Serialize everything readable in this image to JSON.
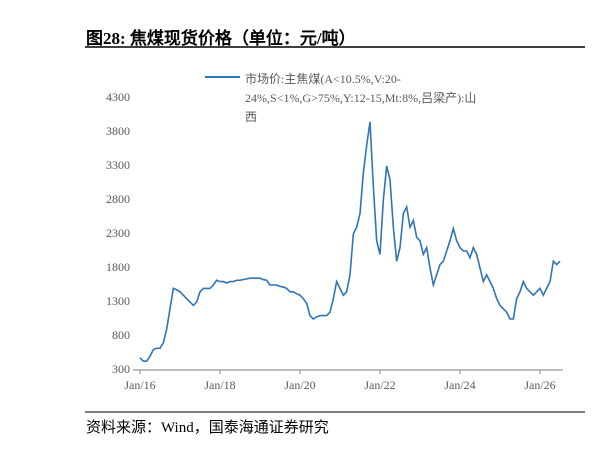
{
  "chart_data": {
    "type": "line",
    "title": "图28:  焦煤现货价格（单位：元/吨）",
    "source": "资料来源：Wind，国泰海通证券研究",
    "x": [
      "Jan/16",
      "Feb/16",
      "Mar/16",
      "Apr/16",
      "May/16",
      "Jun/16",
      "Jul/16",
      "Aug/16",
      "Sep/16",
      "Oct/16",
      "Nov/16",
      "Dec/16",
      "Jan/17",
      "Feb/17",
      "Mar/17",
      "Apr/17",
      "May/17",
      "Jun/17",
      "Jul/17",
      "Aug/17",
      "Sep/17",
      "Oct/17",
      "Nov/17",
      "Dec/17",
      "Jan/18",
      "Feb/18",
      "Mar/18",
      "Apr/18",
      "May/18",
      "Jun/18",
      "Jul/18",
      "Aug/18",
      "Sep/18",
      "Oct/18",
      "Nov/18",
      "Dec/18",
      "Jan/19",
      "Feb/19",
      "Mar/19",
      "Apr/19",
      "May/19",
      "Jun/19",
      "Jul/19",
      "Aug/19",
      "Sep/19",
      "Oct/19",
      "Nov/19",
      "Dec/19",
      "Jan/20",
      "Feb/20",
      "Mar/20",
      "Apr/20",
      "May/20",
      "Jun/20",
      "Jul/20",
      "Aug/20",
      "Sep/20",
      "Oct/20",
      "Nov/20",
      "Dec/20",
      "Jan/21",
      "Feb/21",
      "Mar/21",
      "Apr/21",
      "May/21",
      "Jun/21",
      "Jul/21",
      "Aug/21",
      "Sep/21",
      "Oct/21",
      "Nov/21",
      "Dec/21",
      "Jan/22",
      "Feb/22",
      "Mar/22",
      "Apr/22",
      "May/22",
      "Jun/22",
      "Jul/22",
      "Aug/22",
      "Sep/22",
      "Oct/22",
      "Nov/22",
      "Dec/22",
      "Jan/23",
      "Feb/23",
      "Mar/23",
      "Apr/23",
      "May/23",
      "Jun/23",
      "Jul/23",
      "Aug/23",
      "Sep/23",
      "Oct/23",
      "Nov/23",
      "Dec/23",
      "Jan/24",
      "Feb/24",
      "Mar/24",
      "Apr/24",
      "May/24",
      "Jun/24",
      "Jul/24",
      "Aug/24",
      "Sep/24",
      "Oct/24",
      "Nov/24",
      "Dec/24",
      "Jan/25",
      "Feb/25",
      "Mar/25",
      "Apr/25",
      "May/25",
      "Jun/25",
      "Jul/25",
      "Aug/25",
      "Sep/25",
      "Oct/25",
      "Nov/25",
      "Dec/25",
      "Jan/26",
      "Feb/26",
      "Mar/26",
      "Apr/26",
      "May/26",
      "Jun/26",
      "Jul/26"
    ],
    "series": [
      {
        "name": "市场价:主焦煤(A<10.5%,V:20-24%,S<1%,G>75%,Y:12-15,Mt:8%,吕梁产):山西",
        "color": "#2e75b6",
        "values": [
          480,
          430,
          430,
          500,
          600,
          620,
          620,
          700,
          900,
          1200,
          1500,
          1480,
          1450,
          1400,
          1350,
          1300,
          1250,
          1300,
          1450,
          1500,
          1500,
          1500,
          1550,
          1620,
          1600,
          1600,
          1580,
          1600,
          1600,
          1620,
          1620,
          1630,
          1640,
          1650,
          1650,
          1650,
          1650,
          1630,
          1620,
          1550,
          1550,
          1550,
          1530,
          1520,
          1500,
          1450,
          1450,
          1420,
          1400,
          1350,
          1280,
          1100,
          1050,
          1080,
          1100,
          1100,
          1100,
          1150,
          1350,
          1600,
          1500,
          1400,
          1450,
          1700,
          2300,
          2400,
          2600,
          3200,
          3600,
          3950,
          3000,
          2200,
          2000,
          2800,
          3300,
          3100,
          2400,
          1900,
          2100,
          2600,
          2700,
          2400,
          2500,
          2250,
          2200,
          2000,
          2100,
          1800,
          1550,
          1700,
          1850,
          1900,
          2050,
          2200,
          2380,
          2200,
          2100,
          2050,
          2050,
          1950,
          2100,
          2000,
          1800,
          1600,
          1700,
          1600,
          1500,
          1350,
          1250,
          1200,
          1150,
          1050,
          1050,
          1350,
          1450,
          1600,
          1500,
          1450,
          1400,
          1450,
          1500,
          1400,
          1500,
          1600,
          1900,
          1850,
          1900
        ]
      }
    ],
    "xticks": [
      "Jan/16",
      "Jan/18",
      "Jan/20",
      "Jan/22",
      "Jan/24",
      "Jan/26"
    ],
    "ylim": [
      300,
      4300
    ],
    "yticks": [
      300,
      800,
      1300,
      1800,
      2300,
      2800,
      3300,
      3800,
      4300
    ],
    "grid": false
  }
}
